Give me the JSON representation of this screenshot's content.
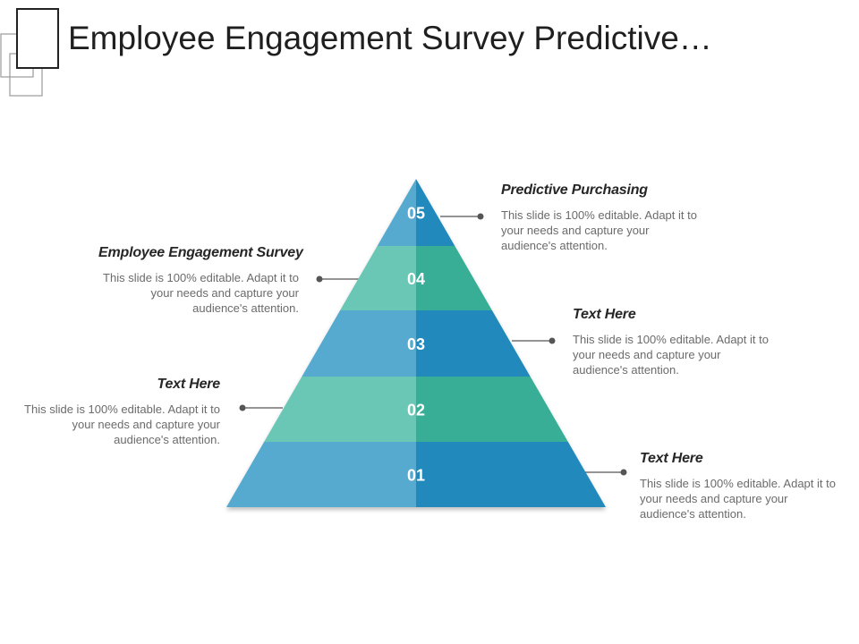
{
  "title": "Employee Engagement Survey Predictive…",
  "colors": {
    "blue_light": "#57a9cf",
    "blue_dark": "#2289bd",
    "teal_light": "#6bc6b5",
    "teal_dark": "#37ae97",
    "connector": "#555555"
  },
  "pyramid": {
    "levels": [
      {
        "number": "05"
      },
      {
        "number": "04"
      },
      {
        "number": "03"
      },
      {
        "number": "02"
      },
      {
        "number": "01"
      }
    ]
  },
  "callouts": [
    {
      "heading": "Predictive Purchasing",
      "body": "This slide is 100% editable. Adapt it to your needs and capture your audience's attention."
    },
    {
      "heading": "Employee Engagement Survey",
      "body": "This slide is 100% editable. Adapt it to your needs and capture your audience's attention."
    },
    {
      "heading": "Text Here",
      "body": "This slide is 100% editable. Adapt it to your needs and capture your audience's attention."
    },
    {
      "heading": "Text Here",
      "body": "This slide is 100% editable. Adapt it to your needs and capture your audience's attention."
    },
    {
      "heading": "Text Here",
      "body": "This slide is 100% editable. Adapt it to your needs and capture your audience's attention."
    }
  ]
}
